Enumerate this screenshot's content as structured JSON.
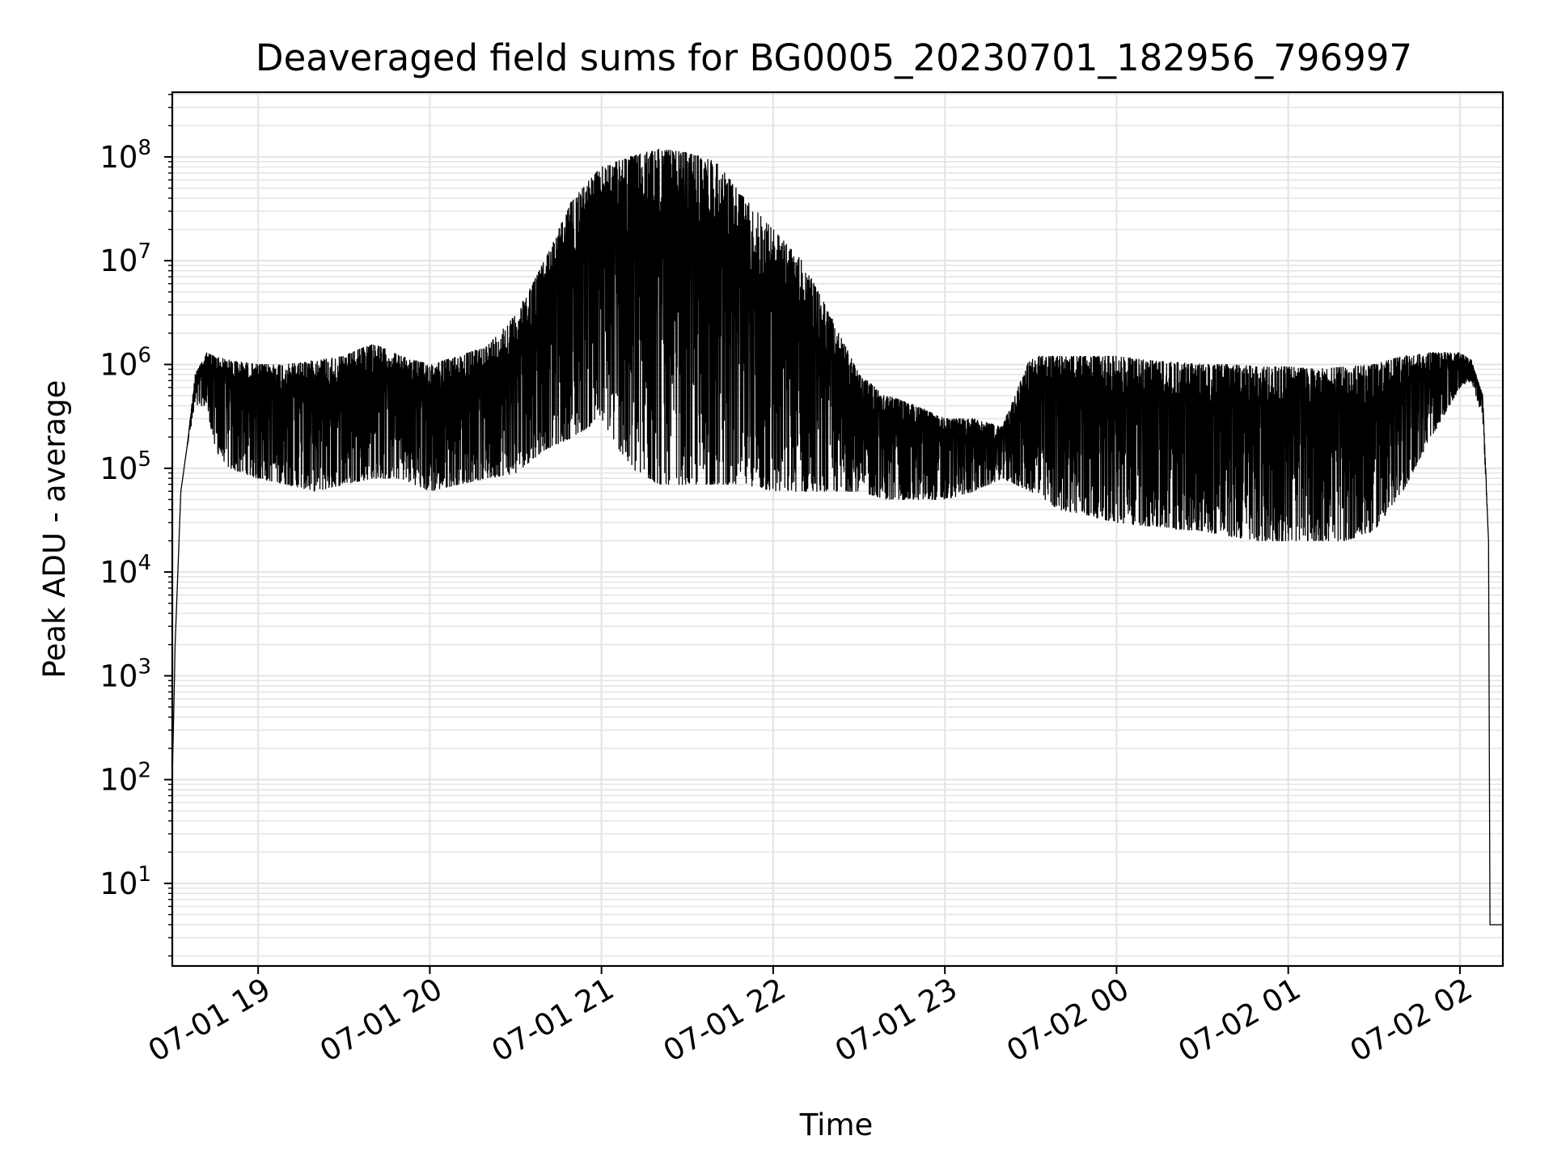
{
  "chart_data": {
    "type": "line",
    "title": "Deaveraged field sums for BG0005_20230701_182956_796997",
    "xlabel": "Time",
    "ylabel": "Peak ADU - average",
    "yscale": "log",
    "ylim": [
      1.6,
      420000000
    ],
    "xlim": [
      "2023-07-01 18:30:00",
      "2023-07-02 02:15:00"
    ],
    "x_ticks": [
      "07-01 19",
      "07-01 20",
      "07-01 21",
      "07-01 22",
      "07-01 23",
      "07-02 00",
      "07-02 01",
      "07-02 02"
    ],
    "y_ticks": [
      {
        "base": "10",
        "exp": "1"
      },
      {
        "base": "10",
        "exp": "2"
      },
      {
        "base": "10",
        "exp": "3"
      },
      {
        "base": "10",
        "exp": "4"
      },
      {
        "base": "10",
        "exp": "5"
      },
      {
        "base": "10",
        "exp": "6"
      },
      {
        "base": "10",
        "exp": "7"
      },
      {
        "base": "10",
        "exp": "8"
      }
    ],
    "grid": true,
    "line_color": "#000000",
    "grid_color": "#e5e5e5",
    "series": [
      {
        "x": [
          "2023-07-01 18:30:00",
          "2023-07-01 18:31:00",
          "2023-07-01 18:33:00",
          "2023-07-01 18:35:00",
          "2023-07-01 18:38:00",
          "2023-07-01 18:42:00",
          "2023-07-01 18:45:00",
          "2023-07-01 18:50:00",
          "2023-07-01 19:00:00",
          "2023-07-01 19:10:00",
          "2023-07-01 19:20:00",
          "2023-07-01 19:30:00",
          "2023-07-01 19:40:00",
          "2023-07-01 19:50:00",
          "2023-07-01 20:00:00",
          "2023-07-01 20:10:00",
          "2023-07-01 20:20:00",
          "2023-07-01 20:30:00",
          "2023-07-01 20:40:00",
          "2023-07-01 20:50:00",
          "2023-07-01 21:00:00",
          "2023-07-01 21:10:00",
          "2023-07-01 21:20:00",
          "2023-07-01 21:30:00",
          "2023-07-01 21:40:00",
          "2023-07-01 21:50:00",
          "2023-07-01 22:00:00",
          "2023-07-01 22:10:00",
          "2023-07-01 22:20:00",
          "2023-07-01 22:30:00",
          "2023-07-01 22:40:00",
          "2023-07-01 22:50:00",
          "2023-07-01 23:00:00",
          "2023-07-01 23:10:00",
          "2023-07-01 23:20:00",
          "2023-07-01 23:30:00",
          "2023-07-01 23:40:00",
          "2023-07-01 23:50:00",
          "2023-07-02 00:00:00",
          "2023-07-02 00:10:00",
          "2023-07-02 00:20:00",
          "2023-07-02 00:30:00",
          "2023-07-02 00:40:00",
          "2023-07-02 00:50:00",
          "2023-07-02 01:00:00",
          "2023-07-02 01:10:00",
          "2023-07-02 01:20:00",
          "2023-07-02 01:30:00",
          "2023-07-02 01:40:00",
          "2023-07-02 01:50:00",
          "2023-07-02 02:00:00",
          "2023-07-02 02:04:00",
          "2023-07-02 02:08:00",
          "2023-07-02 02:10:00",
          "2023-07-02 02:10:30",
          "2023-07-02 02:15:00"
        ],
        "upper": [
          100,
          2000,
          60000,
          150000,
          800000,
          1300000,
          1200000,
          1100000,
          1000000,
          1000000,
          1100000,
          1200000,
          1600000,
          1200000,
          1000000,
          1200000,
          1500000,
          3000000,
          10000000,
          40000000,
          80000000,
          100000000,
          120000000,
          110000000,
          90000000,
          40000000,
          20000000,
          10000000,
          3000000,
          800000,
          500000,
          400000,
          300000,
          300000,
          250000,
          1200000,
          1200000,
          1200000,
          1200000,
          1100000,
          1050000,
          1000000,
          1000000,
          950000,
          950000,
          900000,
          950000,
          1000000,
          1200000,
          1300000,
          1300000,
          1100000,
          500000,
          20000,
          4,
          4
        ],
        "lower": [
          100,
          2000,
          60000,
          150000,
          400000,
          400000,
          150000,
          100000,
          80000,
          70000,
          60000,
          70000,
          80000,
          80000,
          60000,
          70000,
          80000,
          90000,
          150000,
          200000,
          300000,
          100000,
          70000,
          70000,
          70000,
          70000,
          60000,
          60000,
          60000,
          60000,
          50000,
          50000,
          50000,
          60000,
          80000,
          60000,
          40000,
          35000,
          30000,
          28000,
          26000,
          25000,
          22000,
          20000,
          20000,
          20000,
          20000,
          25000,
          60000,
          200000,
          600000,
          700000,
          300000,
          20000,
          4,
          4
        ]
      }
    ]
  }
}
